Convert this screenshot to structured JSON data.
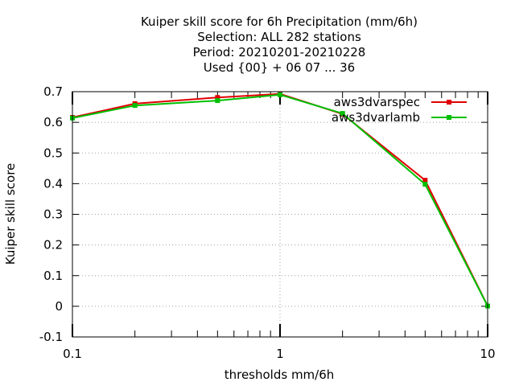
{
  "chart_data": {
    "type": "line",
    "title_lines": [
      "Kuiper skill score  for 6h Precipitation (mm/6h)",
      "Selection: ALL    282 stations",
      "Period: 20210201-20210228",
      "Used {00} + 06 07 ... 36"
    ],
    "xlabel": "thresholds mm/6h",
    "ylabel": "Kuiper skill score",
    "x_scale": "log",
    "xlim": [
      0.1,
      10
    ],
    "ylim": [
      -0.1,
      0.7
    ],
    "x_ticks": [
      0.1,
      1,
      10
    ],
    "x_tick_labels": [
      "0.1",
      "1",
      "10"
    ],
    "y_ticks": [
      -0.1,
      0,
      0.1,
      0.2,
      0.3,
      0.4,
      0.5,
      0.6,
      0.7
    ],
    "y_tick_labels": [
      "-0.1",
      "0",
      "0.1",
      "0.2",
      "0.3",
      "0.4",
      "0.5",
      "0.6",
      "0.7"
    ],
    "grid": true,
    "legend_position": "top-right",
    "x": [
      0.1,
      0.2,
      0.5,
      1,
      2,
      5,
      10
    ],
    "series": [
      {
        "name": "aws3dvarspec",
        "color": "#e00000",
        "values": [
          0.616,
          0.661,
          0.681,
          0.693,
          0.627,
          0.411,
          0.001
        ]
      },
      {
        "name": "aws3dvarlamb",
        "color": "#00c000",
        "values": [
          0.614,
          0.655,
          0.671,
          0.69,
          0.629,
          0.398,
          0.001
        ]
      }
    ]
  }
}
